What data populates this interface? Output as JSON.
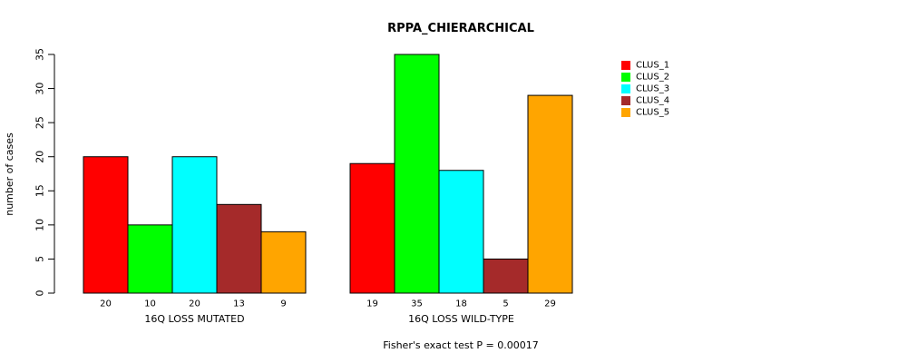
{
  "chart_data": {
    "type": "bar",
    "title": "RPPA_CHIERARCHICAL",
    "ylabel": "number of cases",
    "ylim": [
      0,
      35
    ],
    "yticks": [
      0,
      5,
      10,
      15,
      20,
      25,
      30,
      35
    ],
    "groups": [
      {
        "label": "16Q LOSS MUTATED",
        "values": [
          20,
          10,
          20,
          13,
          9
        ]
      },
      {
        "label": "16Q LOSS WILD-TYPE",
        "values": [
          19,
          35,
          18,
          5,
          29
        ]
      }
    ],
    "series": [
      {
        "name": "CLUS_1",
        "color": "#ff0000"
      },
      {
        "name": "CLUS_2",
        "color": "#00ff00"
      },
      {
        "name": "CLUS_3",
        "color": "#00ffff"
      },
      {
        "name": "CLUS_4",
        "color": "#a52a2a"
      },
      {
        "name": "CLUS_5",
        "color": "#ffa500"
      }
    ],
    "legend_position": "top-right",
    "footnote": "Fisher's exact test P = 0.00017"
  }
}
